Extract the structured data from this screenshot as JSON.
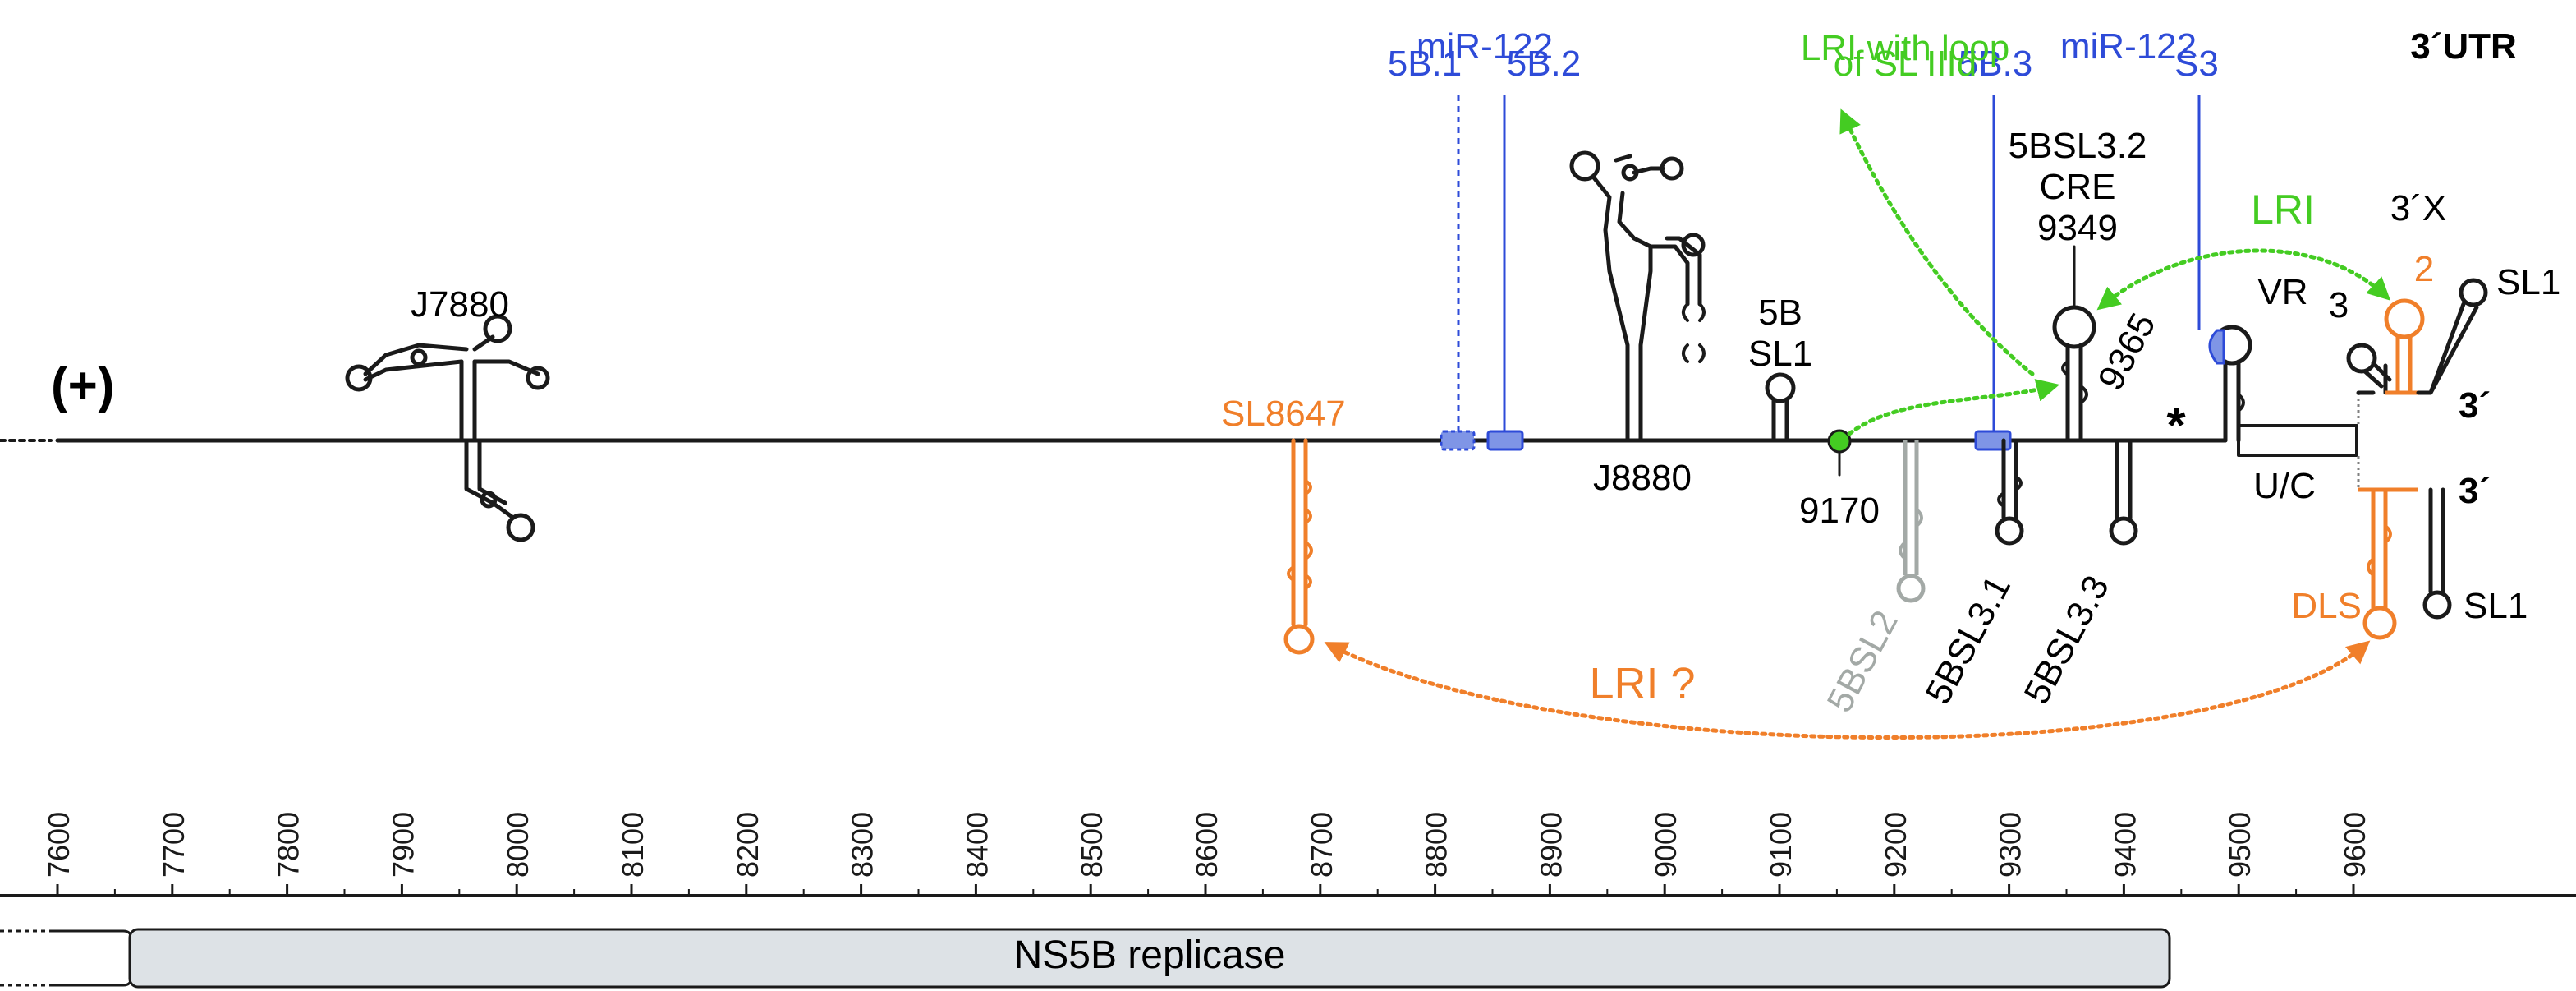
{
  "colors": {
    "black": "#1a1a1a",
    "blue": "#2e4bd8",
    "blue_fill": "#7f95e6",
    "green": "#44cc22",
    "orange": "#f07f2a",
    "gray": "#a3a9a6",
    "bar_fill": "#dde2e6"
  },
  "strand_label": "(+)",
  "section_label": "3´UTR",
  "labels": {
    "mir122_a": "miR-122",
    "site_5b1": "5B.1",
    "site_5b2": "5B.2",
    "lri_loop_1": "LRI with loop",
    "lri_loop_2": "of SL IIId",
    "mir122_b": "miR-122",
    "site_5b3": "5B.3",
    "site_s3": "S3",
    "j7880": "J7880",
    "sl8647": "SL8647",
    "j8880": "J8880",
    "sl5b_1": "5B",
    "sl5b_2": "SL1",
    "pos9170": "9170",
    "sl5bsl2": "5BSL2",
    "sl5bsl31": "5BSL3.1",
    "sl5bsl33": "5BSL3.3",
    "cre_1": "5BSL3.2",
    "cre_2": "CRE",
    "cre_3": "9349",
    "pos9365": "9365",
    "asterisk": "*",
    "vr": "VR",
    "uc": "U/C",
    "lri": "LRI",
    "x3": "3´X",
    "stem2": "2",
    "stem3": "3",
    "sl1_top": "SL1",
    "end_top": "3´",
    "end_bottom": "3´",
    "dls": "DLS",
    "sl1_bottom": "SL1",
    "lri_q": "LRI ?",
    "ns5b": "NS5B replicase"
  },
  "axis": {
    "min": 7600,
    "max": 9600,
    "ticks": [
      "7600",
      "7700",
      "7800",
      "7900",
      "8000",
      "8100",
      "8200",
      "8300",
      "8400",
      "8500",
      "8600",
      "8700",
      "8800",
      "8900",
      "9000",
      "9100",
      "9200",
      "9300",
      "9400",
      "9500",
      "9600"
    ]
  }
}
